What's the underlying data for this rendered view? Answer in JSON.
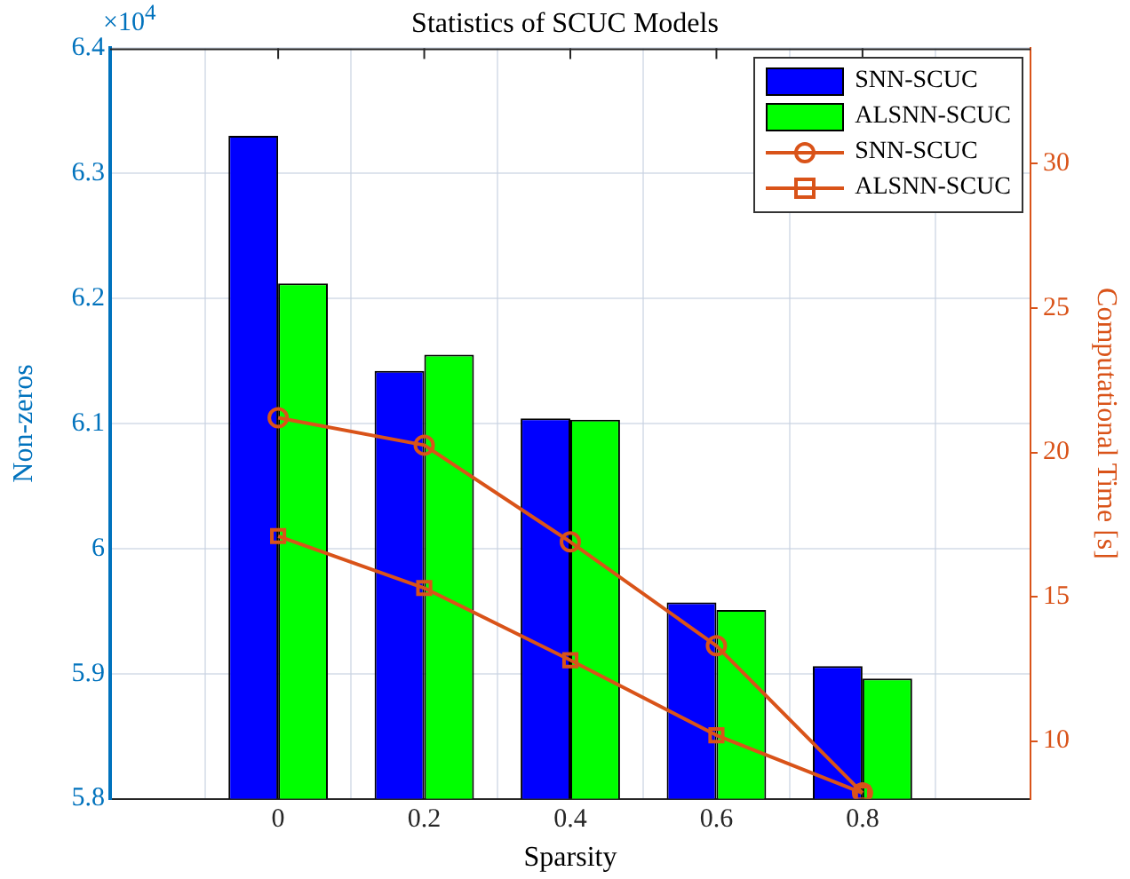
{
  "chart_data": {
    "type": "bar",
    "title": "Statistics of SCUC Models",
    "xlabel": "Sparsity",
    "ylabel": "Non-zeros",
    "y2label": "Computational Time [s]",
    "x": [
      0,
      0.2,
      0.4,
      0.6,
      0.8
    ],
    "xlim": [
      -0.23,
      1.03
    ],
    "xticks": [
      0,
      0.2,
      0.4,
      0.6,
      0.8
    ],
    "ylim": [
      5.8,
      6.4
    ],
    "yticks": [
      5.8,
      5.9,
      6,
      6.1,
      6.2,
      6.3,
      6.4
    ],
    "y2lim": [
      8,
      34
    ],
    "y2ticks": [
      10,
      15,
      20,
      25,
      30
    ],
    "annotations": [
      "×10$^{4}$"
    ],
    "grid": true,
    "legend": "top right",
    "series": [
      {
        "name": "SNN-SCUC",
        "color": "#0000ff",
        "values": [
          6.33,
          6.142,
          6.104,
          5.957,
          5.906
        ]
      },
      {
        "name": "ALSNN-SCUC",
        "color": "#00ff00",
        "values": [
          6.212,
          6.155,
          6.103,
          5.951,
          5.896
        ]
      },
      {
        "type": "line",
        "name": "SNN-SCUC",
        "color": "#d95319",
        "axis": "y2",
        "marker": "circle",
        "values": [
          21.2,
          20.25,
          16.9,
          13.3,
          8.2
        ]
      },
      {
        "type": "line",
        "name": "ALSNN-SCUC",
        "color": "#d95319",
        "axis": "y2",
        "marker": "square",
        "values": [
          17.1,
          15.3,
          12.8,
          10.2,
          8.2
        ]
      }
    ]
  }
}
